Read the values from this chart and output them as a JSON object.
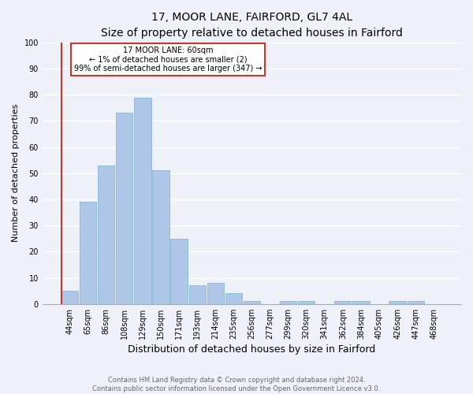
{
  "title": "17, MOOR LANE, FAIRFORD, GL7 4AL",
  "subtitle": "Size of property relative to detached houses in Fairford",
  "xlabel": "Distribution of detached houses by size in Fairford",
  "ylabel": "Number of detached properties",
  "categories": [
    "44sqm",
    "65sqm",
    "86sqm",
    "108sqm",
    "129sqm",
    "150sqm",
    "171sqm",
    "193sqm",
    "214sqm",
    "235sqm",
    "256sqm",
    "277sqm",
    "299sqm",
    "320sqm",
    "341sqm",
    "362sqm",
    "384sqm",
    "405sqm",
    "426sqm",
    "447sqm",
    "468sqm"
  ],
  "values": [
    5,
    39,
    53,
    73,
    79,
    51,
    25,
    7,
    8,
    4,
    1,
    0,
    1,
    1,
    0,
    1,
    1,
    0,
    1,
    1,
    0
  ],
  "bar_color": "#aec6e8",
  "bar_edge_color": "#7aafd4",
  "highlight_index": 0,
  "highlight_line_color": "#c0392b",
  "ylim": [
    0,
    100
  ],
  "yticks": [
    0,
    10,
    20,
    30,
    40,
    50,
    60,
    70,
    80,
    90,
    100
  ],
  "annotation_text": "17 MOOR LANE: 60sqm\n← 1% of detached houses are smaller (2)\n99% of semi-detached houses are larger (347) →",
  "annotation_box_color": "#ffffff",
  "annotation_box_edge_color": "#c0392b",
  "footer_line1": "Contains HM Land Registry data © Crown copyright and database right 2024.",
  "footer_line2": "Contains public sector information licensed under the Open Government Licence v3.0.",
  "background_color": "#eef2f8",
  "grid_color": "#ffffff",
  "title_fontsize": 10,
  "subtitle_fontsize": 9,
  "xlabel_fontsize": 9,
  "ylabel_fontsize": 8,
  "tick_fontsize": 7,
  "footer_fontsize": 6,
  "annotation_fontsize": 7
}
